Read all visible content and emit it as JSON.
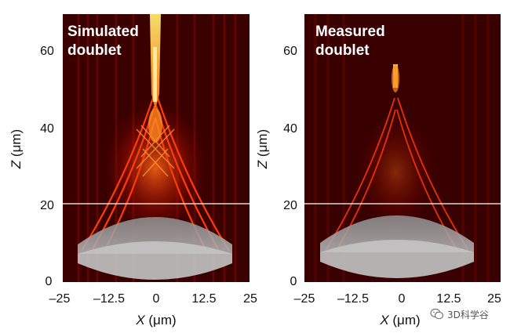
{
  "panels": [
    {
      "title_line1": "Simulated",
      "title_line2": "doublet"
    },
    {
      "title_line1": "Measured",
      "title_line2": "doublet"
    }
  ],
  "axes": {
    "y_label_var": "Z",
    "y_label_unit": " (μm)",
    "x_label_var": "X",
    "x_label_unit": " (μm)",
    "y_ticks": [
      "60",
      "40",
      "20",
      "0"
    ],
    "x_ticks": [
      "–25",
      "–12.5",
      "0",
      "12.5",
      "25"
    ]
  },
  "colors": {
    "background": "#3a0000",
    "beam_core": "#ffe14a",
    "beam": "#ff4a10",
    "lens": "#9a9a9a",
    "interface_line": "#ffffff"
  },
  "watermark": {
    "text": "3D科学谷",
    "icon": "wechat-icon"
  }
}
